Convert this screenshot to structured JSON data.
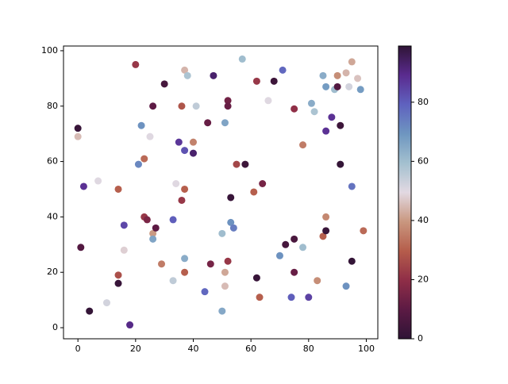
{
  "chart_data": {
    "type": "scatter",
    "x": [
      0,
      0,
      2,
      1,
      4,
      7,
      10,
      14,
      14,
      14,
      16,
      16,
      18,
      20,
      22,
      21,
      23,
      23,
      24,
      25,
      26,
      26,
      26,
      27,
      30,
      29,
      33,
      33,
      34,
      35,
      36,
      36,
      37,
      38,
      37,
      37,
      37,
      37,
      40,
      40,
      41,
      44,
      45,
      46,
      47,
      50,
      50,
      51,
      51,
      51,
      52,
      52,
      52,
      53,
      53,
      54,
      55,
      57,
      58,
      61,
      62,
      62,
      63,
      64,
      66,
      68,
      70,
      71,
      72,
      74,
      75,
      75,
      75,
      78,
      78,
      80,
      81,
      82,
      83,
      85,
      85,
      86,
      86,
      86,
      86,
      88,
      89,
      90,
      90,
      91,
      91,
      93,
      94,
      95,
      95,
      95,
      93,
      97,
      98,
      99
    ],
    "y": [
      72,
      69,
      51,
      29,
      6,
      53,
      9,
      50,
      19,
      16,
      37,
      28,
      1,
      95,
      73,
      59,
      61,
      40,
      39,
      69,
      80,
      34,
      32,
      36,
      88,
      23,
      39,
      17,
      52,
      67,
      80,
      46,
      93,
      91,
      64,
      50,
      25,
      20,
      67,
      63,
      80,
      13,
      74,
      23,
      91,
      34,
      6,
      74,
      20,
      15,
      82,
      80,
      24,
      47,
      38,
      36,
      59,
      97,
      59,
      49,
      89,
      18,
      11,
      52,
      82,
      89,
      26,
      93,
      30,
      11,
      20,
      79,
      32,
      66,
      29,
      11,
      81,
      78,
      17,
      91,
      33,
      87,
      71,
      40,
      35,
      76,
      86,
      87,
      91,
      73,
      59,
      92,
      87,
      96,
      51,
      24,
      15,
      90,
      86,
      35
    ],
    "c": [
      2,
      45,
      88,
      8,
      1,
      50,
      52,
      30,
      27,
      2,
      84,
      48,
      90,
      22,
      70,
      72,
      32,
      22,
      16,
      50,
      10,
      40,
      66,
      10,
      5,
      35,
      80,
      55,
      50,
      87,
      28,
      22,
      44,
      58,
      82,
      30,
      64,
      30,
      36,
      93,
      55,
      78,
      12,
      15,
      93,
      60,
      65,
      66,
      42,
      45,
      14,
      12,
      22,
      2,
      70,
      74,
      25,
      60,
      3,
      30,
      22,
      2,
      30,
      15,
      50,
      3,
      70,
      78,
      5,
      80,
      12,
      20,
      6,
      35,
      60,
      85,
      64,
      58,
      38,
      64,
      30,
      68,
      88,
      37,
      2,
      88,
      60,
      8,
      38,
      3,
      1,
      44,
      52,
      42,
      76,
      1,
      70,
      46,
      68,
      32
    ],
    "colormap": [
      "#2f1436",
      "#5c1a44",
      "#8f2e47",
      "#b55d4b",
      "#c9977f",
      "#e2d9e2",
      "#a3c0cf",
      "#6e96c0",
      "#5f62bf",
      "#5a2b8f",
      "#2f1436"
    ],
    "clim": [
      0,
      99
    ],
    "cticks": [
      0,
      20,
      40,
      60,
      80
    ],
    "xlim": [
      -5,
      104
    ],
    "xticks": [
      0,
      20,
      40,
      60,
      80,
      100
    ],
    "ylim": [
      -4,
      101.7
    ],
    "yticks": [
      0,
      20,
      40,
      60,
      80,
      100
    ]
  }
}
